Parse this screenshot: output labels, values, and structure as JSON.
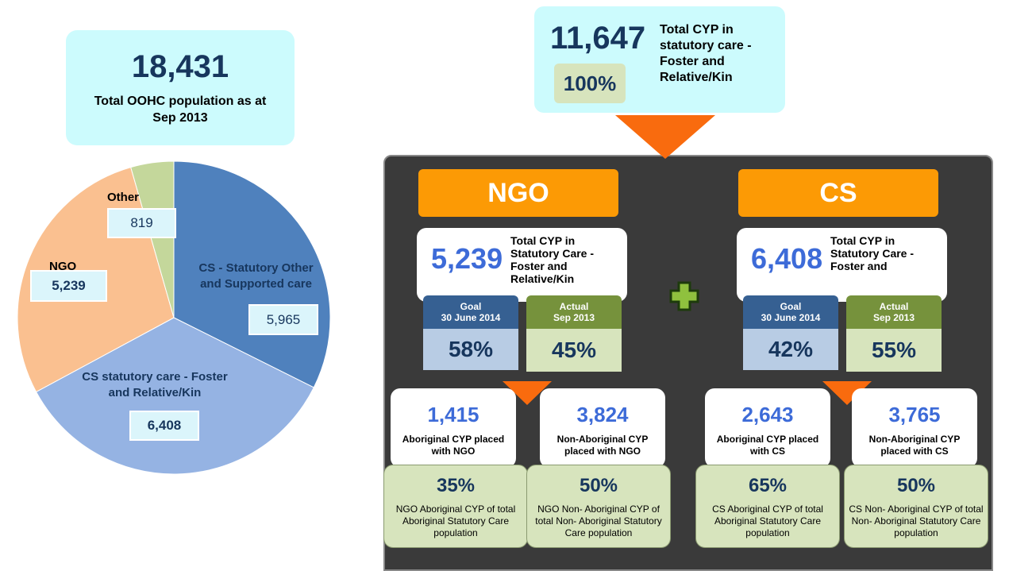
{
  "total": {
    "value": "18,431",
    "label": "Total OOHC population as at Sep 2013"
  },
  "chart_data": {
    "type": "pie",
    "categories": [
      "CS - Statutory Other and Supported care",
      "CS statutory care - Foster and Relative/Kin",
      "NGO",
      "Other"
    ],
    "values": [
      5965,
      6408,
      5239,
      819
    ],
    "value_labels": [
      "5,965",
      "6,408",
      "5,239",
      "819"
    ],
    "colors": [
      "#4f81bd",
      "#95b3e3",
      "#fac090",
      "#c4d79b"
    ]
  },
  "statutory": {
    "value": "11,647",
    "percent": "100%",
    "label": "Total CYP in statutory care - Foster and Relative/Kin"
  },
  "groups": [
    {
      "name": "NGO",
      "value": "5,239",
      "label": "Total CYP in Statutory Care - Foster and Relative/Kin",
      "goal_title": "Goal",
      "goal_date": "30 June 2014",
      "goal": "58%",
      "actual_title": "Actual",
      "actual_date": "Sep 2013",
      "actual": "45%",
      "subs": [
        {
          "value": "1,415",
          "label": "Aboriginal CYP placed with NGO",
          "percent": "35%",
          "note": "NGO Aboriginal CYP of total Aboriginal Statutory Care population"
        },
        {
          "value": "3,824",
          "label": "Non-Aboriginal CYP placed with NGO",
          "percent": "50%",
          "note": "NGO Non- Aboriginal CYP of total Non- Aboriginal Statutory Care population"
        }
      ]
    },
    {
      "name": "CS",
      "value": "6,408",
      "label": "Total CYP in Statutory Care - Foster and",
      "goal_title": "Goal",
      "goal_date": "30 June 2014",
      "goal": "42%",
      "actual_title": "Actual",
      "actual_date": "Sep 2013",
      "actual": "55%",
      "subs": [
        {
          "value": "2,643",
          "label": "Aboriginal CYP placed with CS",
          "percent": "65%",
          "note": "CS Aboriginal CYP of total Aboriginal Statutory Care population"
        },
        {
          "value": "3,765",
          "label": "Non-Aboriginal CYP placed with CS",
          "percent": "50%",
          "note": "CS Non- Aboriginal CYP of total Non- Aboriginal Statutory Care population"
        }
      ]
    }
  ]
}
